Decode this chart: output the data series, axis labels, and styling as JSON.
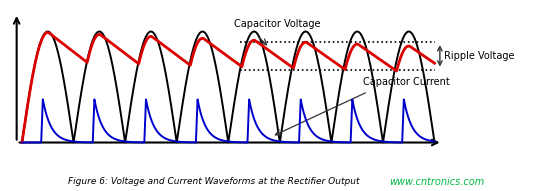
{
  "background_color": "#ffffff",
  "fig_width": 5.35,
  "fig_height": 1.91,
  "dpi": 100,
  "num_cycles": 8,
  "rectified_color": "#000000",
  "capacitor_voltage_color": "#dd0000",
  "capacitor_current_color": "#0000cc",
  "caption": "Figure 6: Voltage and Current Waveforms at the Rectifier Output",
  "caption_fontsize": 6.5,
  "watermark": "www.cntronics.com",
  "watermark_color": "#00bb44",
  "label_capacitor_voltage": "Capacitor Voltage",
  "label_ripple_voltage": "Ripple Voltage",
  "label_capacitor_current": "Capacitor Current",
  "annotation_fontsize": 7,
  "annotation_color": "#333333"
}
